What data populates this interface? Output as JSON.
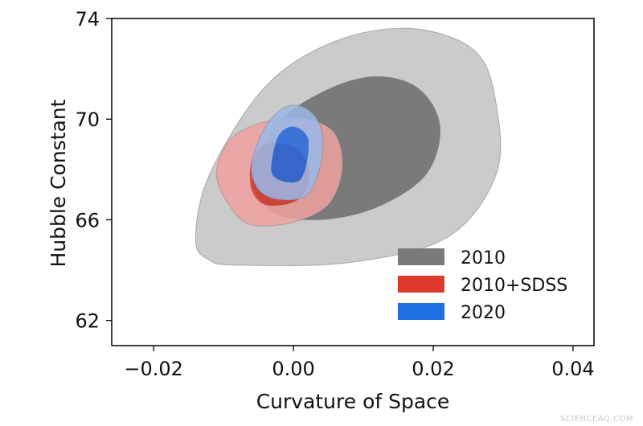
{
  "chart_data": {
    "type": "contour",
    "title": "",
    "xlabel": "Curvature of Space",
    "ylabel": "Hubble Constant",
    "xlim": [
      -0.026,
      0.043
    ],
    "ylim": [
      61.0,
      74.0
    ],
    "xticks": [
      -0.02,
      0.0,
      0.02,
      0.04
    ],
    "xtick_labels": [
      "−0.02",
      "0.00",
      "0.02",
      "0.04"
    ],
    "yticks": [
      62,
      66,
      70,
      74
    ],
    "ytick_labels": [
      "62",
      "66",
      "70",
      "74"
    ],
    "grid": false,
    "legend_position": "lower-right",
    "series": [
      {
        "name": "2010",
        "color_outer": "#cbcbcb",
        "color_inner": "#7a7a7a",
        "legend_color": "#7a7a7a",
        "outer": [
          [
            -0.008,
            64.2
          ],
          [
            0.008,
            64.3
          ],
          [
            0.022,
            65.3
          ],
          [
            0.029,
            67.8
          ],
          [
            0.029,
            70.6
          ],
          [
            0.026,
            72.7
          ],
          [
            0.017,
            73.6
          ],
          [
            0.006,
            73.1
          ],
          [
            -0.004,
            71.3
          ],
          [
            -0.012,
            67.8
          ],
          [
            -0.014,
            65.2
          ],
          [
            -0.012,
            64.4
          ]
        ],
        "inner": [
          [
            0.004,
            66.0
          ],
          [
            0.012,
            66.5
          ],
          [
            0.019,
            67.8
          ],
          [
            0.021,
            69.7
          ],
          [
            0.018,
            71.2
          ],
          [
            0.012,
            71.7
          ],
          [
            0.005,
            71.2
          ],
          [
            -0.002,
            69.9
          ],
          [
            -0.006,
            67.8
          ],
          [
            -0.003,
            66.3
          ]
        ]
      },
      {
        "name": "2010+SDSS",
        "color_outer": "#efa3a0",
        "color_inner": "#dd3a2c",
        "legend_color": "#dd3a2c",
        "outer": [
          [
            -0.006,
            65.8
          ],
          [
            0.0,
            65.9
          ],
          [
            0.005,
            66.6
          ],
          [
            0.007,
            68.0
          ],
          [
            0.006,
            69.4
          ],
          [
            0.002,
            70.0
          ],
          [
            -0.004,
            69.9
          ],
          [
            -0.009,
            69.2
          ],
          [
            -0.011,
            67.8
          ],
          [
            -0.009,
            66.5
          ]
        ],
        "inner": [
          [
            -0.004,
            66.6
          ],
          [
            0.0,
            66.7
          ],
          [
            0.002,
            67.3
          ],
          [
            0.002,
            68.2
          ],
          [
            0.0,
            68.9
          ],
          [
            -0.004,
            69.0
          ],
          [
            -0.006,
            68.3
          ],
          [
            -0.006,
            67.2
          ]
        ]
      },
      {
        "name": "2020",
        "color_outer": "#9ab9ea",
        "color_inner": "#1f6de2",
        "legend_color": "#1f6de2",
        "outer": [
          [
            -0.002,
            66.8
          ],
          [
            0.002,
            67.0
          ],
          [
            0.004,
            68.3
          ],
          [
            0.004,
            69.6
          ],
          [
            0.002,
            70.4
          ],
          [
            -0.001,
            70.5
          ],
          [
            -0.004,
            69.7
          ],
          [
            -0.006,
            68.2
          ],
          [
            -0.005,
            67.2
          ]
        ],
        "inner": [
          [
            -0.001,
            67.5
          ],
          [
            0.001,
            67.6
          ],
          [
            0.002,
            68.4
          ],
          [
            0.002,
            69.3
          ],
          [
            0.0,
            69.7
          ],
          [
            -0.002,
            69.4
          ],
          [
            -0.003,
            68.5
          ],
          [
            -0.003,
            67.8
          ]
        ]
      }
    ]
  },
  "watermark": "SCIENCEAQ.COM"
}
